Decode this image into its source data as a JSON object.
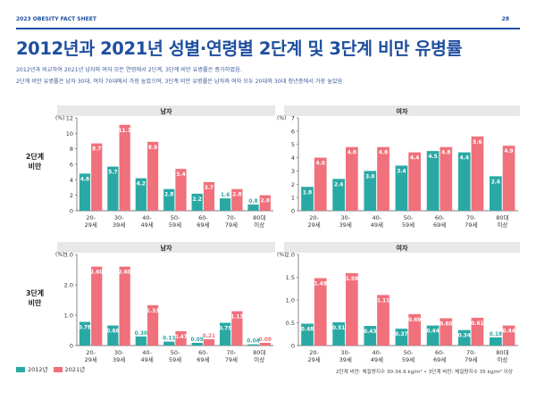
{
  "header": {
    "left": "2023 OBESITY FACT SHEET",
    "page": "28"
  },
  "title": "2012년과 2021년 성별·연령별 2단계 및 3단계 비만 유병률",
  "subtitle": [
    "2012년과 비교하여 2021년 남자와 여자 모든 연령에서 2단계, 3단계 비만 유병률은 증가하였음.",
    "2단계 비만 유병률은 남자 30대, 여자 70대에서 가장 높았으며, 3단계 비만 유병률은 남자와 여자 모두 20대와 30대 청년층에서 가장 높았음"
  ],
  "row_labels": [
    [
      "2단계",
      "비만"
    ],
    [
      "3단계",
      "비만"
    ]
  ],
  "legend": [
    {
      "name": "2012년",
      "color": "#2aa9a4"
    },
    {
      "name": "2021년",
      "color": "#f0707c"
    }
  ],
  "footnote": "2단계 비만: 체질량지수 30-34.9 kg/m²  •  3단계 비만: 체질량지수 35 kg/m² 이상",
  "colors": {
    "s2012": "#2aa9a4",
    "s2021": "#f0707c",
    "panel_bg": "#e8e8e8",
    "title": "#1f4fa0"
  },
  "chart_data": [
    {
      "type": "bar",
      "panel": "남자",
      "title": "남자",
      "unit_label": "(%)",
      "ylim": [
        0,
        12
      ],
      "yticks": [
        "0",
        "2",
        "4",
        "6",
        "8",
        "10",
        "12"
      ],
      "categories": [
        [
          "20-",
          "29세"
        ],
        [
          "30-",
          "39세"
        ],
        [
          "40-",
          "49세"
        ],
        [
          "50-",
          "59세"
        ],
        [
          "60-",
          "69세"
        ],
        [
          "70-",
          "79세"
        ],
        [
          "80대",
          "이상"
        ]
      ],
      "series": [
        {
          "name": "2012년",
          "values": [
            4.8,
            5.7,
            4.2,
            2.8,
            2.2,
            1.6,
            0.8
          ],
          "labels": [
            "4.8",
            "5.7",
            "4.2",
            "2.8",
            "2.2",
            "1.6",
            "0.8"
          ]
        },
        {
          "name": "2021년",
          "values": [
            8.7,
            11.1,
            8.9,
            5.4,
            3.7,
            2.8,
            2.0
          ],
          "labels": [
            "8.7",
            "11.1",
            "8.9",
            "5.4",
            "3.7",
            "2.8",
            "2.0"
          ]
        }
      ]
    },
    {
      "type": "bar",
      "panel": "여자",
      "title": "여자",
      "unit_label": "(%)",
      "ylim": [
        0,
        7
      ],
      "yticks": [
        "0",
        "1",
        "2",
        "3",
        "4",
        "5",
        "6",
        "7"
      ],
      "categories": [
        [
          "20-",
          "29세"
        ],
        [
          "30-",
          "39세"
        ],
        [
          "40-",
          "49세"
        ],
        [
          "50-",
          "59세"
        ],
        [
          "60-",
          "69세"
        ],
        [
          "70-",
          "79세"
        ],
        [
          "80대",
          "이상"
        ]
      ],
      "series": [
        {
          "name": "2012년",
          "values": [
            1.8,
            2.4,
            3.0,
            3.4,
            4.5,
            4.4,
            2.6
          ],
          "labels": [
            "1.8",
            "2.4",
            "3.0",
            "3.4",
            "4.5",
            "4.4",
            "2.6"
          ]
        },
        {
          "name": "2021년",
          "values": [
            4.0,
            4.8,
            4.8,
            4.4,
            4.8,
            5.6,
            4.9
          ],
          "labels": [
            "4.0",
            "4.8",
            "4.8",
            "4.4",
            "4.8",
            "5.6",
            "4.9"
          ]
        }
      ]
    },
    {
      "type": "bar",
      "panel": "남자",
      "title": "남자",
      "unit_label": "(%)",
      "ylim": [
        0,
        3.0
      ],
      "yticks": [
        "0",
        "1.0",
        "2.0",
        "3.0"
      ],
      "categories": [
        [
          "20-",
          "29세"
        ],
        [
          "30-",
          "39세"
        ],
        [
          "40-",
          "49세"
        ],
        [
          "50-",
          "59세"
        ],
        [
          "60-",
          "69세"
        ],
        [
          "70-",
          "79세"
        ],
        [
          "80대",
          "이상"
        ]
      ],
      "series": [
        {
          "name": "2012년",
          "values": [
            0.78,
            0.66,
            0.3,
            0.13,
            0.09,
            0.75,
            0.04
          ],
          "labels": [
            "0.78",
            "0.66",
            "0.30",
            "0.13",
            "0.09",
            "0.75",
            "0.04"
          ]
        },
        {
          "name": "2021년",
          "values": [
            2.6,
            2.6,
            1.33,
            0.47,
            0.21,
            1.13,
            0.09
          ],
          "labels": [
            "2.60",
            "2.60",
            "1.33",
            "0.47",
            "0.21",
            "1.13",
            "0.09"
          ]
        }
      ]
    },
    {
      "type": "bar",
      "panel": "여자",
      "title": "여자",
      "unit_label": "(%)",
      "ylim": [
        0,
        2.0
      ],
      "yticks": [
        "0",
        "0.5",
        "1.0",
        "1.5",
        "2.0"
      ],
      "categories": [
        [
          "20-",
          "29세"
        ],
        [
          "30-",
          "39세"
        ],
        [
          "40-",
          "49세"
        ],
        [
          "50-",
          "59세"
        ],
        [
          "60-",
          "69세"
        ],
        [
          "70-",
          "79세"
        ],
        [
          "80대",
          "이상"
        ]
      ],
      "series": [
        {
          "name": "2012년",
          "values": [
            0.48,
            0.51,
            0.43,
            0.37,
            0.44,
            0.34,
            0.18
          ],
          "labels": [
            "0.48",
            "0.51",
            "0.43",
            "0.37",
            "0.44",
            "0.34",
            "0.18"
          ]
        },
        {
          "name": "2021년",
          "values": [
            1.48,
            1.59,
            1.11,
            0.69,
            0.6,
            0.61,
            0.44
          ],
          "labels": [
            "1.48",
            "1.59",
            "1.11",
            "0.69",
            "0.60",
            "0.61",
            "0.44"
          ]
        }
      ]
    }
  ]
}
